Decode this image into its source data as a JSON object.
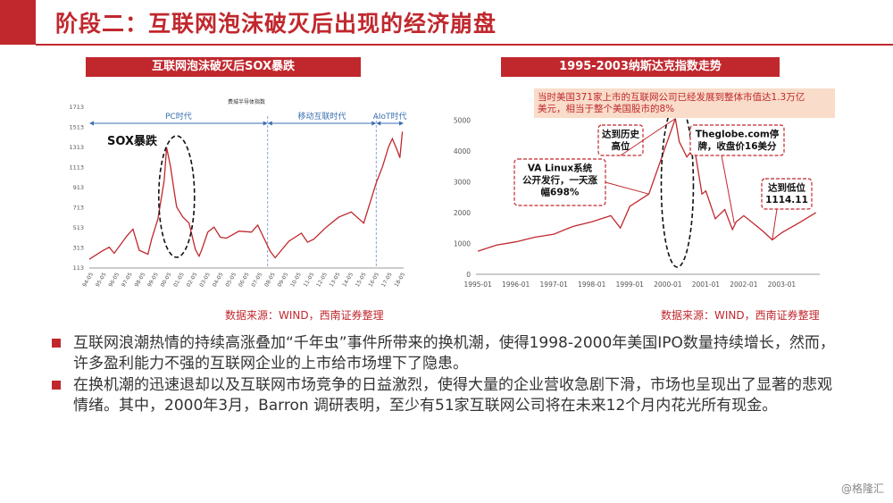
{
  "title": "阶段二：互联网泡沫破灭后出现的经济崩盘",
  "left_panel": {
    "header": "互联网泡沫破灭后SOX暴跌",
    "source": "数据来源：WIND，西南证券整理"
  },
  "right_panel": {
    "header": "1995-2003纳斯达克指数走势",
    "source": "数据来源：WIND，西南证券整理"
  },
  "bullets": [
    "互联网浪潮热情的持续高涨叠加“千年虫”事件所带来的换机潮，使得1998-2000年美国IPO数量持续增长，然而，许多盈利能力不强的互联网企业的上市给市场埋下了隐患。",
    "在换机潮的迅速退却以及互联网市场竞争的日益激烈，使得大量的企业营收急剧下滑，市场也呈现出了显著的悲观情绪。其中，2000年3月，Barron 调研表明，至少有51家互联网公司将在未来12个月内花光所有现金。"
  ],
  "watermark": "@格隆汇",
  "colors": {
    "accent": "#c0282e",
    "series": "#c0282e",
    "era_arrow": "#3a6fb0"
  },
  "chart_data": [
    {
      "type": "line",
      "title": "费城半导体指数",
      "yticks": [
        113,
        313,
        513,
        713,
        913,
        1113,
        1313,
        1513,
        1713
      ],
      "ylim": [
        113,
        1713
      ],
      "xticks": [
        "94-05",
        "95-05",
        "96-05",
        "97-05",
        "98-05",
        "99-05",
        "00-05",
        "01-05",
        "02-05",
        "03-05",
        "04-05",
        "05-05",
        "06-05",
        "07-05",
        "08-05",
        "09-05",
        "10-05",
        "11-05",
        "12-05",
        "13-05",
        "14-05",
        "15-05",
        "16-05",
        "17-05",
        "18-05"
      ],
      "eras": [
        {
          "label": "PC时代",
          "from": "1994-01",
          "to": "2008-04"
        },
        {
          "label": "移动互联时代",
          "from": "2008-04",
          "to": "2017-02"
        },
        {
          "label": "AIoT时代",
          "from": "2017-02",
          "to": "2019-01"
        }
      ],
      "annotation": "SOX暴跌",
      "x": [
        1994.0,
        1995.0,
        1995.6,
        1996.0,
        1997.0,
        1997.5,
        1998.0,
        1998.7,
        1999.0,
        1999.5,
        2000.0,
        2000.2,
        2000.5,
        2000.8,
        2001.0,
        2001.5,
        2002.0,
        2002.5,
        2002.8,
        2003.0,
        2003.5,
        2004.0,
        2004.5,
        2005.0,
        2006.0,
        2007.0,
        2007.5,
        2008.0,
        2008.5,
        2008.9,
        2009.2,
        2010.0,
        2011.0,
        2011.5,
        2012.0,
        2013.0,
        2014.0,
        2015.0,
        2016.0,
        2016.5,
        2017.0,
        2017.5,
        2018.0,
        2018.3,
        2018.7,
        2018.9,
        2019.1
      ],
      "y": [
        200,
        280,
        320,
        260,
        430,
        500,
        290,
        250,
        400,
        600,
        980,
        1310,
        1130,
        880,
        720,
        620,
        560,
        300,
        230,
        290,
        470,
        520,
        420,
        410,
        480,
        470,
        540,
        410,
        280,
        215,
        260,
        380,
        460,
        370,
        400,
        520,
        620,
        670,
        560,
        760,
        960,
        1120,
        1320,
        1400,
        1280,
        1210,
        1470
      ]
    },
    {
      "type": "line",
      "yticks": [
        0,
        1000,
        2000,
        3000,
        4000,
        5000
      ],
      "ylim": [
        0,
        5500
      ],
      "xticks": [
        "1995-01",
        "1996-01",
        "1997-01",
        "1998-01",
        "1999-01",
        "2000-01",
        "2001-01",
        "2002-01",
        "2003-01"
      ],
      "x": [
        1995.0,
        1995.5,
        1996.0,
        1996.5,
        1997.0,
        1997.5,
        1998.0,
        1998.5,
        1998.75,
        1999.0,
        1999.5,
        1999.9,
        2000.2,
        2000.3,
        2000.5,
        2000.7,
        2000.9,
        2001.0,
        2001.25,
        2001.5,
        2001.7,
        2001.8,
        2002.0,
        2002.5,
        2002.75,
        2003.0,
        2003.5,
        2003.9
      ],
      "y": [
        750,
        950,
        1050,
        1200,
        1300,
        1550,
        1700,
        1900,
        1500,
        2200,
        2600,
        4000,
        5048,
        4300,
        3800,
        4100,
        2600,
        2700,
        1800,
        2100,
        1450,
        1700,
        1900,
        1400,
        1114,
        1350,
        1700,
        2000
      ],
      "annotations": [
        {
          "text": "当时美国371家上市的互联网公司已经发展到整体市值达1.3万亿美元，相当于整个美国股市的8%",
          "lines": [
            "当时美国371家上市的互联网公司已经发展到整体市值达1.3万亿",
            "美元，相当于整个美国股市的8%"
          ]
        },
        {
          "text": "VA Linux系统公开发行，一天涨幅698%",
          "lines": [
            "VA Linux系统",
            "公开发行，一天涨",
            "幅698%"
          ]
        },
        {
          "text": "达到历史高位",
          "lines": [
            "达到历史",
            "高位"
          ]
        },
        {
          "text": "Theglobe.com停牌，收盘价16美分",
          "lines": [
            "Theglobe.com停",
            "牌，收盘价16美分"
          ]
        },
        {
          "text": "达到低位1114.11",
          "lines": [
            "达到低位",
            "1114.11"
          ]
        }
      ]
    }
  ]
}
